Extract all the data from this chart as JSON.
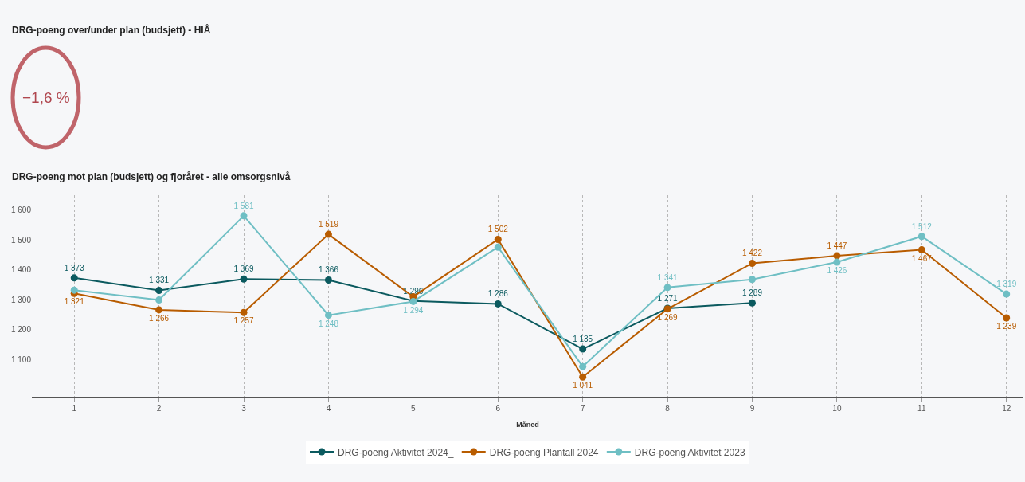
{
  "chart_data": [
    {
      "type": "other",
      "title": "DRG-poeng over/under plan (budsjett) - HIÅ",
      "annotations": [
        "−1,6 %"
      ]
    },
    {
      "type": "line",
      "title": "DRG-poeng mot plan (budsjett) og fjoråret - alle omsorgsnivå",
      "xlabel": "Måned",
      "x": [
        1,
        2,
        3,
        4,
        5,
        6,
        7,
        8,
        9,
        10,
        11,
        12
      ],
      "xlim": [
        0.5,
        12.2
      ],
      "xticks": [
        1,
        2,
        3,
        4,
        5,
        6,
        7,
        8,
        9,
        10,
        11,
        12
      ],
      "ylim": [
        975,
        1650
      ],
      "yticks": [
        {
          "value": 1100,
          "label": "1 100"
        },
        {
          "value": 1200,
          "label": "1 200"
        },
        {
          "value": 1300,
          "label": "1 300"
        },
        {
          "value": 1400,
          "label": "1 400"
        },
        {
          "value": 1500,
          "label": "1 500"
        },
        {
          "value": 1600,
          "label": "1 600"
        }
      ],
      "grid": "x",
      "legend": "bottom",
      "marker": "circle",
      "line_style": "solid",
      "series": [
        {
          "name": "DRG-poeng Aktivitet 2024_",
          "color": "#0b5a5f",
          "values": [
            1373,
            1331,
            1369,
            1366,
            1296,
            1286,
            1135,
            1271,
            1289,
            null,
            null,
            null
          ],
          "value_labels": [
            "1 373",
            "1 331",
            "1 369",
            "1 366",
            "1 296",
            "1 286",
            "1 135",
            "1 271",
            "1 289",
            null,
            null,
            null
          ]
        },
        {
          "name": "DRG-poeng Plantall 2024",
          "color": "#b85c00",
          "values": [
            1321,
            1266,
            1257,
            1519,
            1310,
            1502,
            1041,
            1269,
            1422,
            1447,
            1467,
            1239
          ],
          "value_labels": [
            "1 321",
            "1 266",
            "1 257",
            "1 519",
            null,
            "1 502",
            "1 041",
            "1 269",
            "1 422",
            "1 447",
            "1 467",
            "1 239"
          ]
        },
        {
          "name": "DRG-poeng Aktivitet 2023",
          "color": "#6fbfc4",
          "values": [
            1332,
            1299,
            1581,
            1248,
            1294,
            1476,
            1076,
            1341,
            1368,
            1426,
            1512,
            1319
          ],
          "value_labels": [
            null,
            null,
            "1 581",
            "1 248",
            "1 294",
            null,
            null,
            "1 341",
            null,
            "1 426",
            "1 512",
            "1 319"
          ]
        }
      ]
    }
  ]
}
